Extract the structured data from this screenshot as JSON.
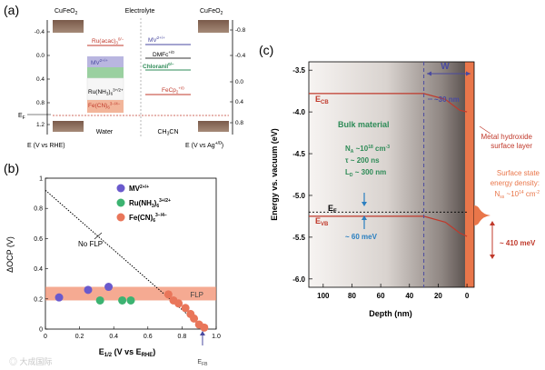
{
  "panel_a": {
    "label": "(a)",
    "left_electrode": "CuFeO",
    "left_electrode_sub": "2",
    "right_electrode": "CuFeO",
    "right_electrode_sub": "2",
    "electrolyte": "Electrolyte",
    "left_ticks": [
      "-0.4",
      "0.0",
      "0.4",
      "0.8",
      "1.2"
    ],
    "right_ticks": [
      "-0.8",
      "-0.4",
      "0.0",
      "0.4",
      "0.8"
    ],
    "ef_label": "E",
    "ef_sub": "F",
    "left_axis_label": "E (V vs RHE)",
    "right_axis_label": "E (V vs Ag",
    "right_axis_sup": "+/0",
    "right_axis_close": ")",
    "water": "Water",
    "ch3cn": "CH",
    "ch3cn_sub": "3",
    "ch3cn_end": "CN",
    "species_water": [
      {
        "label": "Ru(acac)",
        "sub": "3",
        "sup": "0/−",
        "color": "#c0392b"
      },
      {
        "label": "MV",
        "sub": "",
        "sup": "2+/+",
        "color": "#4a4aa0"
      },
      {
        "label": "Ru(NH",
        "sub": "3",
        "sup": "3+/2+",
        "color": "#000000"
      },
      {
        "label": "Fe(CN)",
        "sub": "6",
        "sup": "3−/4−",
        "color": "#c0392b"
      }
    ],
    "species_ch3cn": [
      {
        "label": "MV",
        "sup": "2+/+",
        "color": "#4a4aa0"
      },
      {
        "label": "DMFc",
        "sup": "+/0",
        "color": "#000000"
      },
      {
        "label": "Chloranil",
        "sup": "0/−",
        "color": "#2e8b57"
      },
      {
        "label": "FeCp",
        "sub": "2",
        "sup": "+/0",
        "color": "#c0392b"
      }
    ]
  },
  "panel_b": {
    "label": "(b)",
    "ylabel": "ΔOCP (V)",
    "xlabel_main": "E",
    "xlabel_sub": "1/2",
    "xlabel_rest": " (V vs E",
    "xlabel_sub2": "RHE",
    "xlabel_end": ")",
    "no_flp": "No FLP",
    "flp": "FLP",
    "efb_main": "E",
    "efb_sub": "FB",
    "x_ticks": [
      "0",
      "0.2",
      "0.4",
      "0.6",
      "0.8",
      "1.0"
    ],
    "y_ticks": [
      "0",
      "0.2",
      "0.4",
      "0.6",
      "0.8",
      "1"
    ],
    "legend": [
      {
        "name": "MV",
        "sup": "2+/+",
        "color": "#6a5acd"
      },
      {
        "name": "Ru(NH",
        "sub": "3",
        "close": ")",
        "sub2": "6",
        "sup": "3+/2+",
        "color": "#3cb371"
      },
      {
        "name": "Fe(CN)",
        "sub": "6",
        "sup": "3−/4−",
        "color": "#e9765a"
      }
    ],
    "chart_data": {
      "type": "scatter",
      "xlim": [
        0,
        1.0
      ],
      "ylim": [
        0,
        1.0
      ],
      "series": [
        {
          "name": "MV2+/+",
          "color": "#6a5acd",
          "points": [
            [
              0.08,
              0.21
            ],
            [
              0.25,
              0.26
            ],
            [
              0.37,
              0.28
            ]
          ]
        },
        {
          "name": "Ru(NH3)6 3+/2+",
          "color": "#3cb371",
          "points": [
            [
              0.32,
              0.19
            ],
            [
              0.45,
              0.19
            ],
            [
              0.5,
              0.19
            ]
          ]
        },
        {
          "name": "Fe(CN)6 3-/4-",
          "color": "#e9765a",
          "points": [
            [
              0.72,
              0.23
            ],
            [
              0.75,
              0.19
            ],
            [
              0.78,
              0.17
            ],
            [
              0.82,
              0.14
            ],
            [
              0.85,
              0.1
            ],
            [
              0.87,
              0.07
            ],
            [
              0.9,
              0.03
            ],
            [
              0.93,
              0.01
            ]
          ]
        }
      ],
      "no_flp_line": [
        [
          0.0,
          0.92
        ],
        [
          0.93,
          0.0
        ]
      ],
      "flp_band": [
        0.19,
        0.28
      ],
      "efb": 0.92
    }
  },
  "panel_c": {
    "label": "(c)",
    "ylabel": "Energy vs. vacuum (eV)",
    "xlabel": "Depth (nm)",
    "y_ticks": [
      "-3.5",
      "-4.0",
      "-4.5",
      "-5.0",
      "-5.5",
      "-6.0"
    ],
    "x_ticks": [
      "100",
      "80",
      "60",
      "40",
      "20",
      "0"
    ],
    "w_label": "W",
    "w_value": "~30 nm",
    "ecb_main": "E",
    "ecb_sub": "CB",
    "evb_main": "E",
    "evb_sub": "VB",
    "ef_main": "E",
    "ef_sub": "F",
    "bulk_title": "Bulk material",
    "na_label": "N",
    "na_sub": "A",
    "na_value": " ~10",
    "na_exp": "18",
    "na_unit": " cm",
    "na_unit_exp": "-3",
    "tau": "τ ~ 200 ns",
    "ld_main": "L",
    "ld_sub": "D",
    "ld_value": " ~ 300 nm",
    "mev60": "~ 60 meV",
    "surface_layer_1": "Metal hydroxide",
    "surface_layer_2": "surface layer",
    "ss_1": "Surface state",
    "ss_2": "energy density:",
    "ss_3_main": "N",
    "ss_3_sub": "ss",
    "ss_3_val": " ~10",
    "ss_3_exp": "14",
    "ss_3_unit": " cm",
    "ss_3_unit_exp": "-2",
    "mev410": "~ 410 meV",
    "chart_data": {
      "type": "line",
      "xlim": [
        110,
        -5
      ],
      "ylim": [
        -6.1,
        -3.4
      ],
      "series": [
        {
          "name": "ECB",
          "points": [
            [
              110,
              -3.78
            ],
            [
              30,
              -3.78
            ],
            [
              15,
              -3.85
            ],
            [
              5,
              -3.98
            ],
            [
              0,
              -4.0
            ]
          ]
        },
        {
          "name": "EVB",
          "points": [
            [
              110,
              -5.25
            ],
            [
              30,
              -5.25
            ],
            [
              15,
              -5.32
            ],
            [
              5,
              -5.45
            ],
            [
              0,
              -5.49
            ]
          ]
        },
        {
          "name": "EF",
          "points": [
            [
              110,
              -5.2
            ],
            [
              0,
              -5.2
            ]
          ]
        }
      ],
      "depletion_width_nm": 30
    }
  },
  "watermark": "大成国际"
}
